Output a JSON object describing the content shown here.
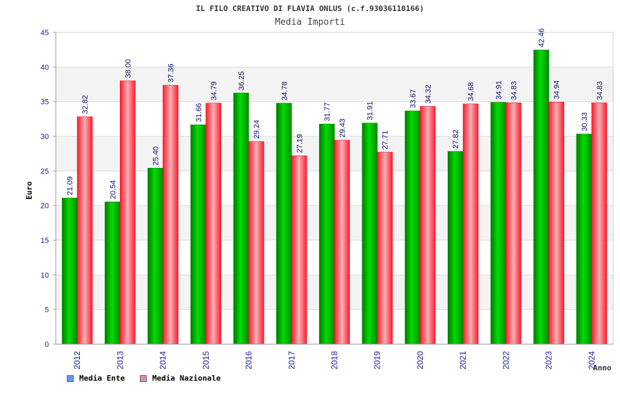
{
  "chart_data": {
    "type": "bar",
    "title": "IL FILO CREATIVO DI FLAVIA ONLUS (c.f.93036110166)",
    "subtitle": "Media Importi",
    "xlabel": "Anno",
    "ylabel": "Euro",
    "ylim": [
      0,
      45
    ],
    "yticks": [
      0,
      5,
      10,
      15,
      20,
      25,
      30,
      35,
      40,
      45
    ],
    "grid": true,
    "legend_position": "bottom-left",
    "categories": [
      "2012",
      "2013",
      "2014",
      "2015",
      "2016",
      "2017",
      "2018",
      "2019",
      "2020",
      "2021",
      "2022",
      "2023",
      "2024"
    ],
    "series": [
      {
        "name": "Media Ente",
        "color": "#00c000",
        "legend_color": "#6699ee",
        "values": [
          21.09,
          20.54,
          25.4,
          31.66,
          36.25,
          34.78,
          31.77,
          31.91,
          33.67,
          27.82,
          34.91,
          42.46,
          30.33
        ],
        "labels": [
          "21.09",
          "20.54",
          "25.40",
          "31.66",
          "36.25",
          "34.78",
          "31.77",
          "31.91",
          "33.67",
          "27.82",
          "34.91",
          "42.46",
          "30.33"
        ]
      },
      {
        "name": "Media Nazionale",
        "color": "#ee2233",
        "legend_color": "#dd88bb",
        "values": [
          32.82,
          38.0,
          37.36,
          34.79,
          29.24,
          27.19,
          29.43,
          27.71,
          34.32,
          34.68,
          34.83,
          34.94,
          34.83
        ],
        "labels": [
          "32.82",
          "38.00",
          "37.36",
          "34.79",
          "29.24",
          "27.19",
          "29.43",
          "27.71",
          "34.32",
          "34.68",
          "34.83",
          "34.94",
          "34.83"
        ]
      }
    ]
  }
}
